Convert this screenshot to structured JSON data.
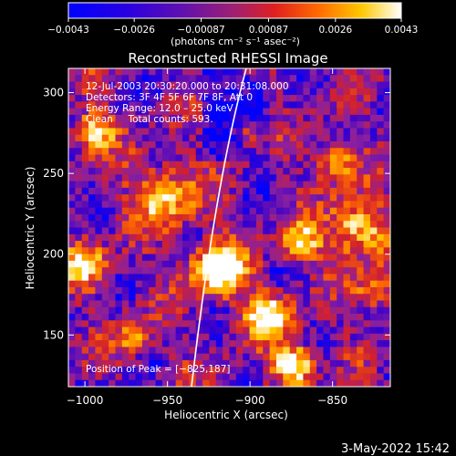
{
  "chart_data": {
    "type": "heatmap",
    "title": "Reconstructed RHESSI Image",
    "xlabel": "Heliocentric X (arcsec)",
    "ylabel": "Heliocentric Y (arcsec)",
    "xlim": [
      -1010,
      -815
    ],
    "ylim": [
      118,
      315
    ],
    "x_ticks": [
      -1000,
      -950,
      -900,
      -850
    ],
    "x_tick_labels": [
      "−1000",
      "−950",
      "−900",
      "−850"
    ],
    "y_ticks": [
      150,
      200,
      250,
      300
    ],
    "y_tick_labels": [
      "150",
      "200",
      "250",
      "300"
    ],
    "colorbar": {
      "min": -0.0043,
      "max": 0.0043,
      "ticks": [
        -0.0043,
        -0.0026,
        -0.00087,
        0.00087,
        0.0026,
        0.0043
      ],
      "tick_labels": [
        "−0.0043",
        "−0.0026",
        "−0.00087",
        "0.00087",
        "0.0026",
        "0.0043"
      ],
      "units": "(photons cm⁻² s⁻¹ asec⁻²)",
      "colors": [
        "#0000ff",
        "#3b00c8",
        "#8a20a0",
        "#d02030",
        "#ff6a00",
        "#ffc800",
        "#ffffff"
      ]
    },
    "info_lines": [
      "12-Jul-2003 20:30:20.000 to 20:31:08.000",
      "Detectors: 3F 4F 5F 6F 7F 8F, Att 0",
      "Energy Range: 12.0 – 25.0 keV",
      "Clean     Total counts: 593."
    ],
    "peak_label": "Position of Peak = [−825,187]",
    "grid": false,
    "limb_arc": true
  },
  "footer": {
    "timestamp": "3-May-2022 15:42"
  }
}
